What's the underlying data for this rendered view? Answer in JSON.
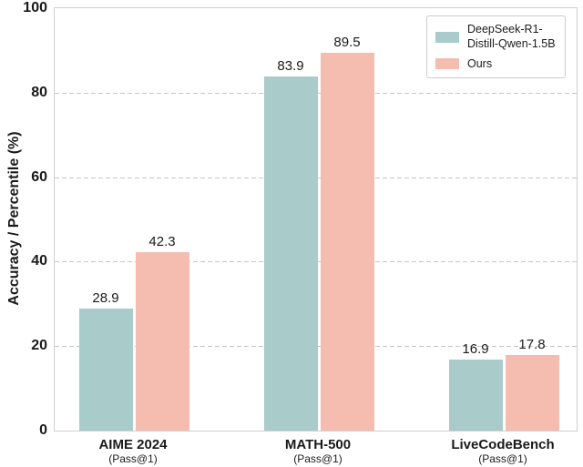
{
  "chart_data": {
    "type": "bar",
    "title": "",
    "xlabel": "",
    "ylabel": "Accuracy / Percentile (%)",
    "ylim": [
      0,
      100
    ],
    "yticks": [
      0,
      20,
      40,
      60,
      80,
      100
    ],
    "grid": "horizontal dashed",
    "legend_position": "upper right",
    "categories": [
      {
        "label": "AIME 2024",
        "sublabel": "(Pass@1)"
      },
      {
        "label": "MATH-500",
        "sublabel": "(Pass@1)"
      },
      {
        "label": "LiveCodeBench",
        "sublabel": "(Pass@1)"
      }
    ],
    "series": [
      {
        "name": "DeepSeek-R1-\nDistill-Qwen-1.5B",
        "color": "#a9cbc9",
        "values": [
          28.9,
          83.9,
          16.9
        ]
      },
      {
        "name": "Ours",
        "color": "#f5bcb0",
        "values": [
          42.3,
          89.5,
          17.8
        ]
      }
    ],
    "colors": {
      "grid": "#c6c6c6",
      "spine": "#cfcfcf",
      "text": "#1a1a1a",
      "background": "#ffffff"
    }
  }
}
